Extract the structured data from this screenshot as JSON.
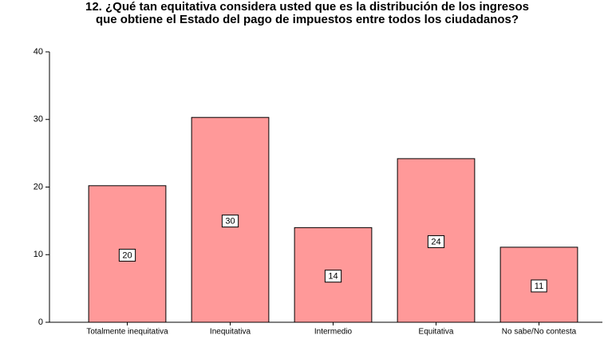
{
  "chart_data": {
    "type": "bar",
    "title": "12. ¿Qué tan equitativa considera usted que es la distribución de los ingresos",
    "subtitle": "que obtiene el Estado del pago de impuestos entre todos los ciudadanos?",
    "categories": [
      "Totalmente inequitativa",
      "Inequitativa",
      "Intermedio",
      "Equitativa",
      "No sabe/No contesta"
    ],
    "values": [
      20.2,
      30.3,
      14.0,
      24.2,
      11.1
    ],
    "value_labels": [
      "20",
      "30",
      "14",
      "24",
      "11"
    ],
    "color": "#ff9999",
    "ylim": [
      0,
      40
    ],
    "yticks": [
      0,
      10,
      20,
      30,
      40
    ],
    "grid": false
  }
}
